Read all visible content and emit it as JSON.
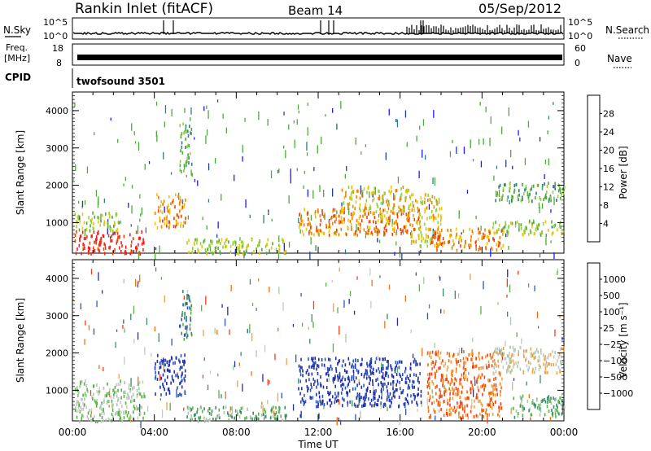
{
  "header": {
    "station": "Rankin Inlet (fitACF)",
    "beam": "Beam 14",
    "date": "05/Sep/2012"
  },
  "strip_panels": {
    "nsky": {
      "label": "N.Sky",
      "ticks": [
        "10^5",
        "10^0"
      ]
    },
    "nsearch": {
      "label": "N.Search",
      "ticks": [
        "10^5",
        "10^0"
      ]
    },
    "freq": {
      "label_line1": "Freq.",
      "label_line2": "[MHz]",
      "ticks": [
        "18",
        "8"
      ]
    },
    "nave": {
      "label": "Nave",
      "ticks": [
        "60",
        "0"
      ]
    },
    "cpid": {
      "label": "CPID",
      "program": "twofsound  3501"
    }
  },
  "chart_data": [
    {
      "type": "heatmap",
      "name": "power",
      "ylabel": "Slant Range [km]",
      "xlabel": "",
      "x_ticks": [
        "00:00",
        "04:00",
        "08:00",
        "12:00",
        "16:00",
        "20:00",
        "00:00"
      ],
      "x_range_hours": [
        0,
        24
      ],
      "y_ticks": [
        "1000",
        "2000",
        "3000",
        "4000"
      ],
      "ylim": [
        180,
        4500
      ],
      "colorbar": {
        "label": "Power [dB]",
        "ticks": [
          "28",
          "24",
          "20",
          "16",
          "12",
          "8",
          "4"
        ],
        "colors": [
          "#1a1aff",
          "#1b3fa8",
          "#2e7d7d",
          "#4faa3c",
          "#8fd13a",
          "#f2c200",
          "#f08000",
          "#f04000",
          "#ff1a1a"
        ]
      },
      "regions": [
        {
          "t0": 0.1,
          "t1": 3.5,
          "r0": 200,
          "r1": 800,
          "level": 8
        },
        {
          "t0": 0.1,
          "t1": 2.3,
          "r0": 800,
          "r1": 1300,
          "level": 4
        },
        {
          "t0": 4.0,
          "t1": 5.5,
          "r0": 900,
          "r1": 1800,
          "level": 6
        },
        {
          "t0": 5.2,
          "t1": 5.8,
          "r0": 2400,
          "r1": 3700,
          "level": 3
        },
        {
          "t0": 5.5,
          "t1": 10.5,
          "r0": 200,
          "r1": 600,
          "level": 4
        },
        {
          "t0": 11.0,
          "t1": 17.0,
          "r0": 700,
          "r1": 1400,
          "level": 6
        },
        {
          "t0": 13.0,
          "t1": 16.5,
          "r0": 1300,
          "r1": 2000,
          "level": 5
        },
        {
          "t0": 16.5,
          "t1": 18.0,
          "r0": 400,
          "r1": 1800,
          "level": 5
        },
        {
          "t0": 17.5,
          "t1": 21.0,
          "r0": 300,
          "r1": 900,
          "level": 6
        },
        {
          "t0": 20.5,
          "t1": 24.0,
          "r0": 700,
          "r1": 1100,
          "level": 4
        },
        {
          "t0": 20.5,
          "t1": 24.0,
          "r0": 1600,
          "r1": 2100,
          "level": 3
        }
      ]
    },
    {
      "type": "heatmap",
      "name": "velocity",
      "ylabel": "Slant Range [km]",
      "xlabel": "Time UT",
      "x_ticks": [
        "00:00",
        "04:00",
        "08:00",
        "12:00",
        "16:00",
        "20:00",
        "00:00"
      ],
      "x_range_hours": [
        0,
        24
      ],
      "y_ticks": [
        "1000",
        "2000",
        "3000",
        "4000"
      ],
      "ylim": [
        180,
        4500
      ],
      "colorbar": {
        "label": "Velocity [m s⁻¹]",
        "ticks": [
          "1000",
          "500",
          "100",
          "25",
          "−25",
          "−100",
          "−500",
          "−1000"
        ],
        "colors": [
          "#1f2fa8",
          "#2a54c0",
          "#3a8a6a",
          "#55b340",
          "#a8c8a8",
          "#c8c8c8",
          "#f4a040",
          "#f07010",
          "#ff3a10"
        ]
      },
      "regions": [
        {
          "t0": 0.1,
          "t1": 3.5,
          "r0": 200,
          "r1": 1300,
          "level": 4
        },
        {
          "t0": 4.0,
          "t1": 5.5,
          "r0": 900,
          "r1": 2000,
          "level": 0
        },
        {
          "t0": 5.2,
          "t1": 5.8,
          "r0": 2400,
          "r1": 3700,
          "level": 2
        },
        {
          "t0": 5.5,
          "t1": 10.5,
          "r0": 200,
          "r1": 600,
          "level": 3
        },
        {
          "t0": 11.0,
          "t1": 17.0,
          "r0": 600,
          "r1": 1900,
          "level": 0
        },
        {
          "t0": 17.3,
          "t1": 21.0,
          "r0": 300,
          "r1": 2100,
          "level": 7
        },
        {
          "t0": 20.5,
          "t1": 24.0,
          "r0": 1500,
          "r1": 2200,
          "level": 5
        },
        {
          "t0": 21.5,
          "t1": 24.0,
          "r0": 300,
          "r1": 900,
          "level": 3
        }
      ]
    }
  ]
}
